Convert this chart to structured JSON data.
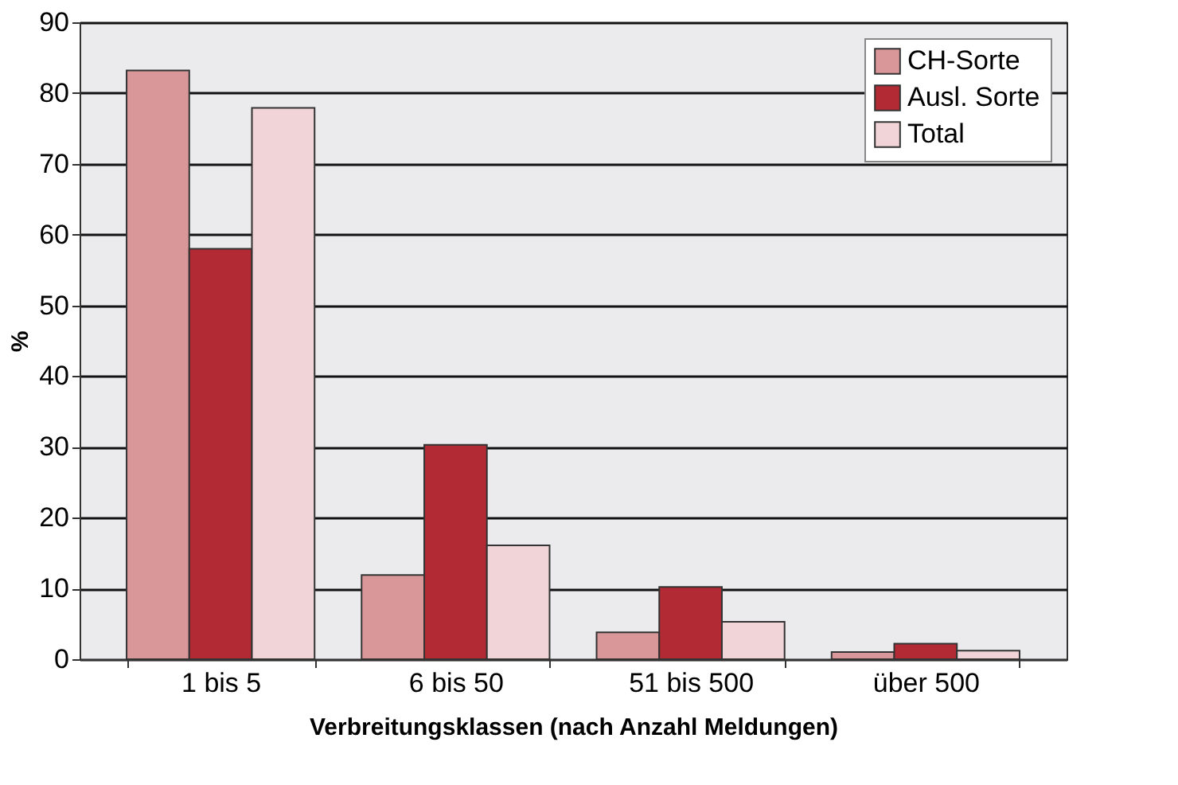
{
  "chart_data": {
    "type": "bar",
    "xlabel": "Verbreitungsklassen (nach Anzahl Meldungen)",
    "ylabel": "%",
    "categories": [
      "1 bis 5",
      "6 bis 50",
      "51 bis 500",
      "über 500"
    ],
    "series": [
      {
        "name": "CH-Sorte",
        "color": "#d9979a",
        "values": [
          83.2,
          11.9,
          3.8,
          1.0
        ]
      },
      {
        "name": "Ausl. Sorte",
        "color": "#b22a33",
        "values": [
          58,
          30.3,
          10.2,
          2.2
        ]
      },
      {
        "name": "Total",
        "color": "#f0d4d7",
        "values": [
          77.9,
          16.1,
          5.3,
          1.2
        ]
      }
    ],
    "ylim": [
      0,
      90
    ],
    "yticks": [
      0,
      10,
      20,
      30,
      40,
      50,
      60,
      70,
      80,
      90
    ],
    "grid": "y",
    "legend": "top right"
  }
}
